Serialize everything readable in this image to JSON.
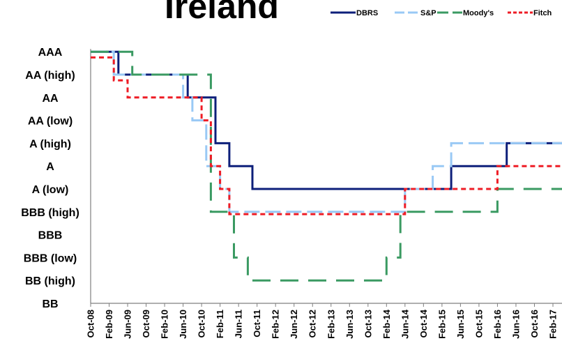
{
  "chart_data": {
    "type": "line",
    "title": "Ireland",
    "xlabel": "",
    "ylabel": "",
    "grid": false,
    "legend_position": "top-right",
    "y_categories": [
      "BB",
      "BB (high)",
      "BBB (low)",
      "BBB",
      "BBB (high)",
      "A (low)",
      "A",
      "A (high)",
      "AA (low)",
      "AA",
      "AA (high)",
      "AAA"
    ],
    "ylim": [
      0,
      11
    ],
    "x_tick_labels": [
      "Oct-08",
      "Feb-09",
      "Jun-09",
      "Oct-09",
      "Feb-10",
      "Jun-10",
      "Oct-10",
      "Feb-11",
      "Jun-11",
      "Oct-11",
      "Feb-12",
      "Jun-12",
      "Oct-12",
      "Feb-13",
      "Jun-13",
      "Oct-13",
      "Feb-14",
      "Jun-14",
      "Oct-14",
      "Feb-15",
      "Jun-15",
      "Oct-15",
      "Feb-16",
      "Jun-16",
      "Oct-16",
      "Feb-17"
    ],
    "x_unit": "months since Oct-08",
    "xlim": [
      0,
      103
    ],
    "series": [
      {
        "name": "DBRS",
        "color": "#0d1f7a",
        "dash": "solid",
        "points": [
          [
            0,
            11
          ],
          [
            6,
            11
          ],
          [
            6,
            10
          ],
          [
            21,
            10
          ],
          [
            21,
            9
          ],
          [
            27,
            9
          ],
          [
            27,
            7
          ],
          [
            30,
            7
          ],
          [
            30,
            6
          ],
          [
            35,
            6
          ],
          [
            35,
            5
          ],
          [
            78,
            5
          ],
          [
            78,
            6
          ],
          [
            90,
            6
          ],
          [
            90,
            7
          ],
          [
            103,
            7
          ]
        ]
      },
      {
        "name": "S&P",
        "color": "#99c9f5",
        "dash": "long",
        "points": [
          [
            0,
            11
          ],
          [
            5,
            11
          ],
          [
            5,
            10
          ],
          [
            20,
            10
          ],
          [
            20,
            9
          ],
          [
            22,
            9
          ],
          [
            22,
            8
          ],
          [
            25,
            8
          ],
          [
            25,
            6
          ],
          [
            28,
            6
          ],
          [
            28,
            5
          ],
          [
            30,
            5
          ],
          [
            30,
            4
          ],
          [
            68,
            4
          ],
          [
            68,
            5
          ],
          [
            74,
            5
          ],
          [
            74,
            6
          ],
          [
            78,
            6
          ],
          [
            78,
            7
          ],
          [
            103,
            7
          ]
        ]
      },
      {
        "name": "Moody's",
        "color": "#3a9a62",
        "dash": "longdash",
        "points": [
          [
            0,
            11
          ],
          [
            9,
            11
          ],
          [
            9,
            10
          ],
          [
            26,
            10
          ],
          [
            26,
            4
          ],
          [
            31,
            4
          ],
          [
            31,
            2
          ],
          [
            34,
            2
          ],
          [
            34,
            1
          ],
          [
            64,
            1
          ],
          [
            64,
            2
          ],
          [
            67,
            2
          ],
          [
            67,
            4
          ],
          [
            88,
            4
          ],
          [
            88,
            5
          ],
          [
            103,
            5
          ]
        ]
      },
      {
        "name": "Fitch",
        "color": "#ee1c25",
        "dash": "short",
        "points": [
          [
            0,
            10.75
          ],
          [
            5,
            10.75
          ],
          [
            5,
            9.75
          ],
          [
            8,
            9.75
          ],
          [
            8,
            9
          ],
          [
            24,
            9
          ],
          [
            24,
            8
          ],
          [
            26,
            8
          ],
          [
            26,
            6
          ],
          [
            28,
            6
          ],
          [
            28,
            5
          ],
          [
            30,
            5
          ],
          [
            30,
            3.9
          ],
          [
            68,
            3.9
          ],
          [
            68,
            5
          ],
          [
            88,
            5
          ],
          [
            88,
            6
          ],
          [
            103,
            6
          ]
        ]
      }
    ]
  }
}
